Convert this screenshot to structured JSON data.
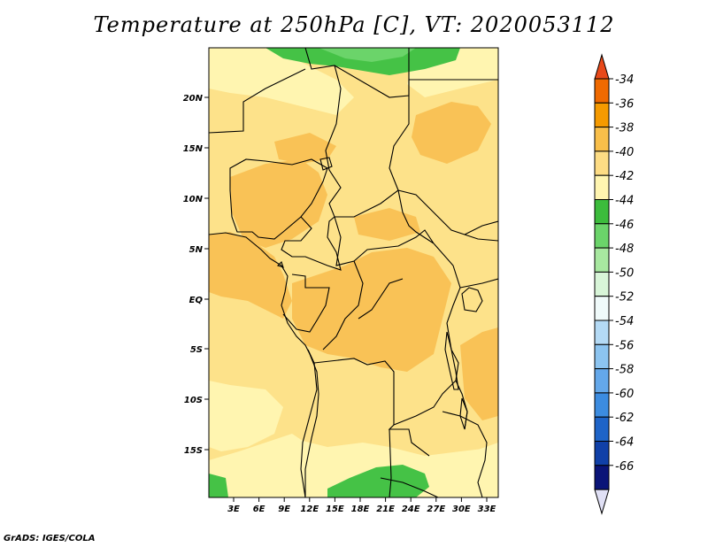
{
  "title": "Temperature at 250hPa [C], VT: 2020053112",
  "footer": "GrADS: IGES/COLA",
  "map": {
    "lat_labels": [
      "20N",
      "15N",
      "10N",
      "5N",
      "EQ",
      "5S",
      "10S",
      "15S"
    ],
    "lon_labels": [
      "3E",
      "6E",
      "9E",
      "12E",
      "15E",
      "18E",
      "21E",
      "24E",
      "27E",
      "30E",
      "33E"
    ],
    "fill_colors": {
      "c42": "#fff5b0",
      "c40": "#fde28a",
      "c38": "#f9c256",
      "c44": "#45c246",
      "c46": "#6bd46a"
    }
  },
  "colorbar": {
    "labels": [
      "-34",
      "-36",
      "-38",
      "-40",
      "-42",
      "-44",
      "-46",
      "-48",
      "-50",
      "-52",
      "-54",
      "-56",
      "-58",
      "-60",
      "-62",
      "-64",
      "-66"
    ],
    "colors": [
      "#e8491a",
      "#f06a00",
      "#f59a00",
      "#f9bf4a",
      "#fddc84",
      "#fff5b0",
      "#3cbc3c",
      "#6bd46a",
      "#a8e8a0",
      "#d8f5d8",
      "#f0fafa",
      "#b4daf5",
      "#8cc4f0",
      "#64a8ea",
      "#3c8ce0",
      "#1e64c8",
      "#1040a8",
      "#0a1478",
      "#e0e0f5"
    ]
  }
}
